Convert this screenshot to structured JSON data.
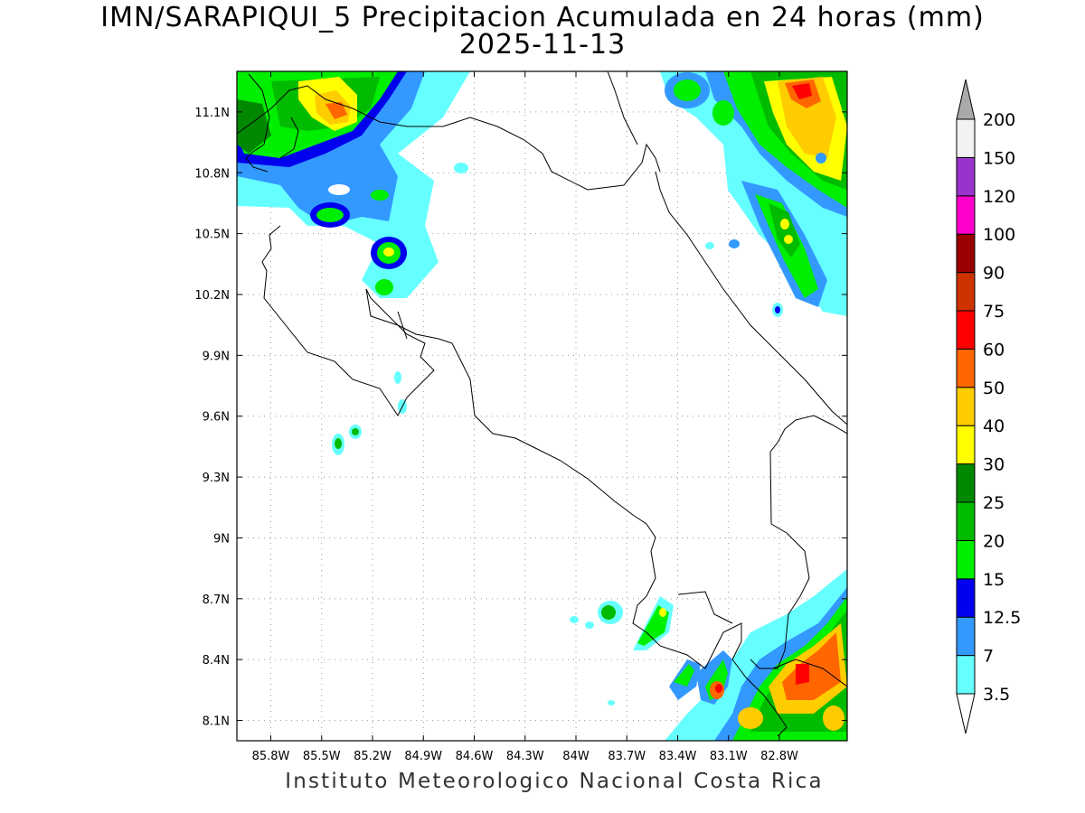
{
  "title": {
    "line1": "IMN/SARAPIQUI_5 Precipitacion Acumulada en 24 horas (mm)",
    "line2": "2025-11-13"
  },
  "footer": "Instituto Meteorologico Nacional Costa Rica",
  "map": {
    "lon_range": [
      -86.0,
      -82.4
    ],
    "lat_range": [
      8.0,
      11.3
    ],
    "lon_ticks": [
      {
        "value": -85.8,
        "label": "85.8W"
      },
      {
        "value": -85.5,
        "label": "85.5W"
      },
      {
        "value": -85.2,
        "label": "85.2W"
      },
      {
        "value": -84.9,
        "label": "84.9W"
      },
      {
        "value": -84.6,
        "label": "84.6W"
      },
      {
        "value": -84.3,
        "label": "84.3W"
      },
      {
        "value": -84.0,
        "label": "84W"
      },
      {
        "value": -83.7,
        "label": "83.7W"
      },
      {
        "value": -83.4,
        "label": "83.4W"
      },
      {
        "value": -83.1,
        "label": "83.1W"
      },
      {
        "value": -82.8,
        "label": "82.8W"
      }
    ],
    "lat_ticks": [
      {
        "value": 11.1,
        "label": "11.1N"
      },
      {
        "value": 10.8,
        "label": "10.8N"
      },
      {
        "value": 10.5,
        "label": "10.5N"
      },
      {
        "value": 10.2,
        "label": "10.2N"
      },
      {
        "value": 9.9,
        "label": "9.9N"
      },
      {
        "value": 9.6,
        "label": "9.6N"
      },
      {
        "value": 9.3,
        "label": "9.3N"
      },
      {
        "value": 9.0,
        "label": "9N"
      },
      {
        "value": 8.7,
        "label": "8.7N"
      },
      {
        "value": 8.4,
        "label": "8.4N"
      },
      {
        "value": 8.1,
        "label": "8.1N"
      }
    ],
    "grid": true
  },
  "colorbar": {
    "levels": [
      "3.5",
      "7",
      "12.5",
      "15",
      "20",
      "25",
      "30",
      "40",
      "50",
      "60",
      "75",
      "90",
      "100",
      "120",
      "150",
      "200"
    ],
    "colors": [
      "#ffffff",
      "#66ffff",
      "#3399ff",
      "#0000ee",
      "#00ee00",
      "#00bb00",
      "#008800",
      "#ffff00",
      "#ffcc00",
      "#ff6600",
      "#ff0000",
      "#cc3300",
      "#990000",
      "#ff00cc",
      "#9933cc",
      "#f2f2f2",
      "#aaaaaa"
    ]
  }
}
